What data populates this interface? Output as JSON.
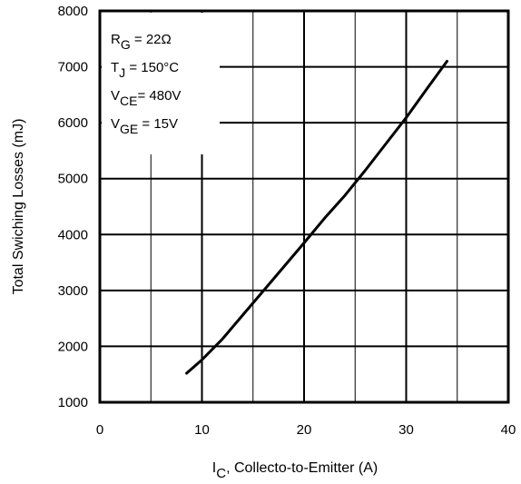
{
  "chart_data": {
    "type": "line",
    "title": "",
    "xlabel": {
      "main": "I",
      "sub": "C",
      "rest": ",  Collecto-to-Emitter (A)"
    },
    "ylabel": "Total Swiching Losses (mJ)",
    "xlim": [
      0,
      40
    ],
    "ylim": [
      1000,
      8000
    ],
    "xticks": [
      0,
      10,
      20,
      30,
      40
    ],
    "yticks": [
      1000,
      2000,
      3000,
      4000,
      5000,
      6000,
      7000,
      8000
    ],
    "x_minor_grid": [
      5,
      10,
      15,
      20,
      25,
      30,
      35
    ],
    "grid": true,
    "series": [
      {
        "x": [
          8.5,
          10,
          12,
          14,
          16,
          18,
          20,
          22,
          24,
          26,
          28,
          30,
          32,
          34
        ],
        "y": [
          1520,
          1760,
          2130,
          2560,
          2990,
          3420,
          3850,
          4290,
          4700,
          5150,
          5620,
          6090,
          6600,
          7100
        ]
      }
    ],
    "conditions": [
      {
        "main": "R",
        "sub": "G",
        "rest": " = 22Ω"
      },
      {
        "main": "T",
        "sub": "J",
        "rest": " = 150°C"
      },
      {
        "main": "V",
        "sub": "CE",
        "rest": "= 480V"
      },
      {
        "main": "V",
        "sub": "GE",
        "rest": " = 15V"
      }
    ]
  }
}
